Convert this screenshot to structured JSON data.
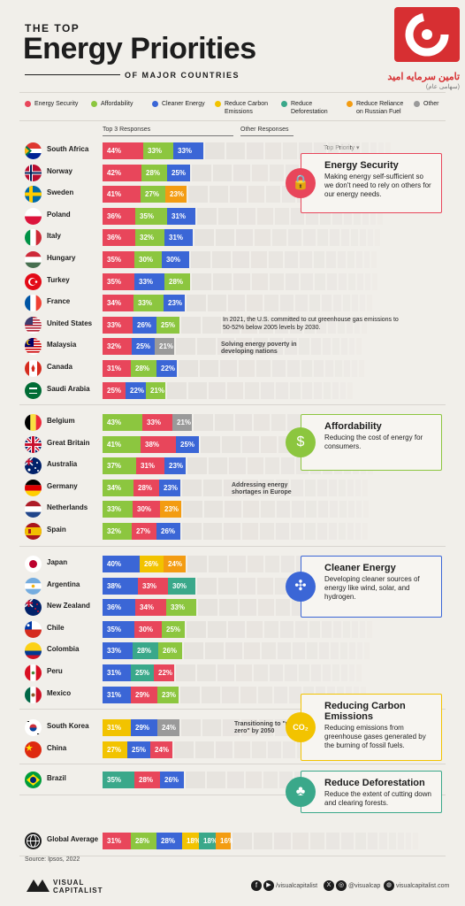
{
  "header": {
    "pre_title": "THE TOP",
    "title": "Energy Priorities",
    "post_title": "OF MAJOR COUNTRIES",
    "watermark_text": "تامین سرمایه امید",
    "watermark_sub": "(سهامی عام)"
  },
  "legend": [
    {
      "label": "Energy Security",
      "color": "#e8465b"
    },
    {
      "label": "Affordability",
      "color": "#8cc63f"
    },
    {
      "label": "Cleaner Energy",
      "color": "#3b66d6"
    },
    {
      "label": "Reduce Carbon Emissions",
      "color": "#f2c300"
    },
    {
      "label": "Reduce Deforestation",
      "color": "#3aa88a"
    },
    {
      "label": "Reduce Reliance on Russian Fuel",
      "color": "#f39c12"
    },
    {
      "label": "Other",
      "color": "#9a9a9a"
    }
  ],
  "column_headers": {
    "top3": "Top 3 Responses",
    "other": "Other Responses",
    "priority": "Top Priority ▾"
  },
  "chart_data": {
    "type": "bar",
    "title": "The Top Energy Priorities of Major Countries",
    "groups": [
      {
        "priority": "Energy Security",
        "rows": [
          {
            "country": "South Africa",
            "flag": "za",
            "values": [
              {
                "cat": "Energy Security",
                "v": 44
              },
              {
                "cat": "Affordability",
                "v": 33
              },
              {
                "cat": "Cleaner Energy",
                "v": 33
              }
            ]
          },
          {
            "country": "Norway",
            "flag": "no",
            "values": [
              {
                "cat": "Energy Security",
                "v": 42
              },
              {
                "cat": "Affordability",
                "v": 28
              },
              {
                "cat": "Cleaner Energy",
                "v": 25
              }
            ]
          },
          {
            "country": "Sweden",
            "flag": "se",
            "values": [
              {
                "cat": "Energy Security",
                "v": 41
              },
              {
                "cat": "Affordability",
                "v": 27
              },
              {
                "cat": "Reduce Reliance on Russian Fuel",
                "v": 23
              }
            ]
          },
          {
            "country": "Poland",
            "flag": "pl",
            "values": [
              {
                "cat": "Energy Security",
                "v": 36
              },
              {
                "cat": "Affordability",
                "v": 35
              },
              {
                "cat": "Cleaner Energy",
                "v": 31
              }
            ]
          },
          {
            "country": "Italy",
            "flag": "it",
            "values": [
              {
                "cat": "Energy Security",
                "v": 36
              },
              {
                "cat": "Affordability",
                "v": 32
              },
              {
                "cat": "Cleaner Energy",
                "v": 31
              }
            ]
          },
          {
            "country": "Hungary",
            "flag": "hu",
            "values": [
              {
                "cat": "Energy Security",
                "v": 35
              },
              {
                "cat": "Affordability",
                "v": 30
              },
              {
                "cat": "Cleaner Energy",
                "v": 30
              }
            ]
          },
          {
            "country": "Turkey",
            "flag": "tr",
            "values": [
              {
                "cat": "Energy Security",
                "v": 35
              },
              {
                "cat": "Cleaner Energy",
                "v": 33
              },
              {
                "cat": "Affordability",
                "v": 28
              }
            ]
          },
          {
            "country": "France",
            "flag": "fr",
            "values": [
              {
                "cat": "Energy Security",
                "v": 34
              },
              {
                "cat": "Affordability",
                "v": 33
              },
              {
                "cat": "Cleaner Energy",
                "v": 23
              }
            ]
          },
          {
            "country": "United States",
            "flag": "us",
            "values": [
              {
                "cat": "Energy Security",
                "v": 33
              },
              {
                "cat": "Cleaner Energy",
                "v": 26
              },
              {
                "cat": "Affordability",
                "v": 25
              }
            ]
          },
          {
            "country": "Malaysia",
            "flag": "my",
            "values": [
              {
                "cat": "Energy Security",
                "v": 32
              },
              {
                "cat": "Cleaner Energy",
                "v": 25
              },
              {
                "cat": "Other",
                "v": 21
              }
            ]
          },
          {
            "country": "Canada",
            "flag": "ca",
            "values": [
              {
                "cat": "Energy Security",
                "v": 31
              },
              {
                "cat": "Affordability",
                "v": 28
              },
              {
                "cat": "Cleaner Energy",
                "v": 22
              }
            ]
          },
          {
            "country": "Saudi Arabia",
            "flag": "sa",
            "values": [
              {
                "cat": "Energy Security",
                "v": 25
              },
              {
                "cat": "Cleaner Energy",
                "v": 22
              },
              {
                "cat": "Affordability",
                "v": 21
              }
            ]
          }
        ]
      },
      {
        "priority": "Affordability",
        "rows": [
          {
            "country": "Belgium",
            "flag": "be",
            "values": [
              {
                "cat": "Affordability",
                "v": 43
              },
              {
                "cat": "Energy Security",
                "v": 33
              },
              {
                "cat": "Other",
                "v": 21
              }
            ]
          },
          {
            "country": "Great Britain",
            "flag": "gb",
            "values": [
              {
                "cat": "Affordability",
                "v": 41
              },
              {
                "cat": "Energy Security",
                "v": 38
              },
              {
                "cat": "Cleaner Energy",
                "v": 25
              }
            ]
          },
          {
            "country": "Australia",
            "flag": "au",
            "values": [
              {
                "cat": "Affordability",
                "v": 37
              },
              {
                "cat": "Energy Security",
                "v": 31
              },
              {
                "cat": "Cleaner Energy",
                "v": 23
              }
            ]
          },
          {
            "country": "Germany",
            "flag": "de",
            "values": [
              {
                "cat": "Affordability",
                "v": 34
              },
              {
                "cat": "Energy Security",
                "v": 28
              },
              {
                "cat": "Cleaner Energy",
                "v": 23
              }
            ]
          },
          {
            "country": "Netherlands",
            "flag": "nl",
            "values": [
              {
                "cat": "Affordability",
                "v": 33
              },
              {
                "cat": "Energy Security",
                "v": 30
              },
              {
                "cat": "Reduce Reliance on Russian Fuel",
                "v": 23
              }
            ]
          },
          {
            "country": "Spain",
            "flag": "es",
            "values": [
              {
                "cat": "Affordability",
                "v": 32
              },
              {
                "cat": "Energy Security",
                "v": 27
              },
              {
                "cat": "Cleaner Energy",
                "v": 26
              }
            ]
          }
        ]
      },
      {
        "priority": "Cleaner Energy",
        "rows": [
          {
            "country": "Japan",
            "flag": "jp",
            "values": [
              {
                "cat": "Cleaner Energy",
                "v": 40
              },
              {
                "cat": "Reduce Carbon Emissions",
                "v": 26
              },
              {
                "cat": "Reduce Reliance on Russian Fuel",
                "v": 24
              }
            ]
          },
          {
            "country": "Argentina",
            "flag": "ar",
            "values": [
              {
                "cat": "Cleaner Energy",
                "v": 38
              },
              {
                "cat": "Energy Security",
                "v": 33
              },
              {
                "cat": "Reduce Deforestation",
                "v": 30
              }
            ]
          },
          {
            "country": "New Zealand",
            "flag": "nz",
            "values": [
              {
                "cat": "Cleaner Energy",
                "v": 36
              },
              {
                "cat": "Energy Security",
                "v": 34
              },
              {
                "cat": "Affordability",
                "v": 33
              }
            ]
          },
          {
            "country": "Chile",
            "flag": "cl",
            "values": [
              {
                "cat": "Cleaner Energy",
                "v": 35
              },
              {
                "cat": "Energy Security",
                "v": 30
              },
              {
                "cat": "Affordability",
                "v": 25
              }
            ]
          },
          {
            "country": "Colombia",
            "flag": "co",
            "values": [
              {
                "cat": "Cleaner Energy",
                "v": 33
              },
              {
                "cat": "Reduce Deforestation",
                "v": 28
              },
              {
                "cat": "Affordability",
                "v": 26
              }
            ]
          },
          {
            "country": "Peru",
            "flag": "pe",
            "values": [
              {
                "cat": "Cleaner Energy",
                "v": 31
              },
              {
                "cat": "Reduce Deforestation",
                "v": 25
              },
              {
                "cat": "Energy Security",
                "v": 22
              }
            ]
          },
          {
            "country": "Mexico",
            "flag": "mx",
            "values": [
              {
                "cat": "Cleaner Energy",
                "v": 31
              },
              {
                "cat": "Energy Security",
                "v": 29
              },
              {
                "cat": "Affordability",
                "v": 23
              }
            ]
          }
        ]
      },
      {
        "priority": "Reduce Carbon Emissions",
        "rows": [
          {
            "country": "South Korea",
            "flag": "kr",
            "values": [
              {
                "cat": "Reduce Carbon Emissions",
                "v": 31
              },
              {
                "cat": "Cleaner Energy",
                "v": 29
              },
              {
                "cat": "Other",
                "v": 24
              }
            ]
          },
          {
            "country": "China",
            "flag": "cn",
            "values": [
              {
                "cat": "Reduce Carbon Emissions",
                "v": 27
              },
              {
                "cat": "Cleaner Energy",
                "v": 25
              },
              {
                "cat": "Energy Security",
                "v": 24
              }
            ]
          }
        ]
      },
      {
        "priority": "Reduce Deforestation",
        "rows": [
          {
            "country": "Brazil",
            "flag": "br",
            "values": [
              {
                "cat": "Reduce Deforestation",
                "v": 35
              },
              {
                "cat": "Energy Security",
                "v": 28
              },
              {
                "cat": "Cleaner Energy",
                "v": 26
              }
            ]
          }
        ]
      },
      {
        "priority": "Global",
        "rows": [
          {
            "country": "Global Average",
            "flag": "globe",
            "values": [
              {
                "cat": "Energy Security",
                "v": 31
              },
              {
                "cat": "Affordability",
                "v": 28
              },
              {
                "cat": "Cleaner Energy",
                "v": 28
              },
              {
                "cat": "Reduce Carbon Emissions",
                "v": 18
              },
              {
                "cat": "Reduce Deforestation",
                "v": 18
              },
              {
                "cat": "Reduce Reliance on Russian Fuel",
                "v": 16
              }
            ]
          }
        ]
      }
    ]
  },
  "annotations": {
    "us": "In 2021, the U.S. committed to cut greenhouse gas emissions to 50-52% below 2005 levels by 2030.",
    "malaysia": "Solving energy poverty in developing nations",
    "europe": "Addressing energy shortages in Europe",
    "korea": "Transitioning to \"net zero\" by 2050"
  },
  "priority_boxes": [
    {
      "key": "security",
      "title": "Energy Security",
      "desc": "Making energy self-sufficient so we don't need to rely on others for our energy needs.",
      "color": "#e8465b",
      "icon": "lock-icon",
      "glyph": "🔒"
    },
    {
      "key": "afford",
      "title": "Affordability",
      "desc": "Reducing the cost of energy for consumers.",
      "color": "#8cc63f",
      "icon": "coin-icon",
      "glyph": "$"
    },
    {
      "key": "clean",
      "title": "Cleaner Energy",
      "desc": "Developing cleaner sources of energy like wind, solar, and hydrogen.",
      "color": "#3b66d6",
      "icon": "wind-turbine-icon",
      "glyph": "✣"
    },
    {
      "key": "carbon",
      "title": "Reducing Carbon Emissions",
      "desc": "Reducing emissions from greenhouse gases generated by the burning of fossil fuels.",
      "color": "#f2c300",
      "icon": "co2-cloud-icon",
      "glyph": "CO₂"
    },
    {
      "key": "forest",
      "title": "Reduce Deforestation",
      "desc": "Reduce the extent of cutting down and clearing forests.",
      "color": "#3aa88a",
      "icon": "tree-icon",
      "glyph": "♣"
    }
  ],
  "footer": {
    "source": "Source: Ipsos, 2022",
    "brand": "VISUAL CAPITALIST",
    "social1": "/visualcapitalist",
    "social2": "@visualcap",
    "site": "visualcapitalist.com"
  }
}
